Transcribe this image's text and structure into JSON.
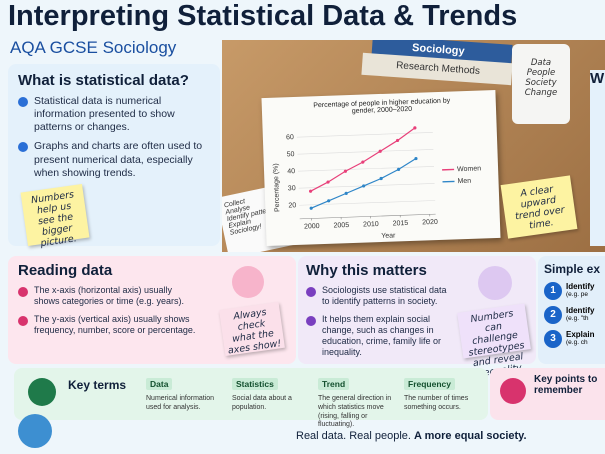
{
  "header": {
    "title": "Interpreting Statistical Data & Trends",
    "subtitle": "AQA GCSE Sociology"
  },
  "what_is": {
    "heading": "What is statistical data?",
    "bullets": [
      "Statistical data is numerical information presented to show patterns or changes.",
      "Graphs and charts are often used to present numerical data, especially when showing trends."
    ],
    "note": "Numbers help us see the bigger picture."
  },
  "photo": {
    "books": [
      "Sociology",
      "Research Methods"
    ],
    "mug": "Data People Society Change",
    "notebook": [
      "Collect",
      "Analyse",
      "Identify patterns",
      "Explain",
      "Sociology!"
    ],
    "note": "A clear upward trend over time.",
    "chart": {
      "type": "line",
      "title": "Percentage of people in higher education by gender, 2000–2020",
      "y_label": "Percentage (%)",
      "x_label": "Year",
      "xlim": [
        1998,
        2021
      ],
      "ylim": [
        12,
        66
      ],
      "xticks": [
        2000,
        2005,
        2010,
        2015,
        2020
      ],
      "yticks": [
        20,
        30,
        40,
        50,
        60
      ],
      "x": [
        2000,
        2003,
        2006,
        2009,
        2012,
        2015,
        2018
      ],
      "series": [
        {
          "name": "Women",
          "color": "#e8407a",
          "values": [
            28,
            33,
            39,
            44,
            50,
            56,
            63
          ]
        },
        {
          "name": "Men",
          "color": "#2f86c8",
          "values": [
            18,
            22,
            26,
            30,
            34,
            39,
            45
          ]
        }
      ]
    }
  },
  "right_panel": {
    "heading": "W"
  },
  "reading_data": {
    "heading": "Reading data",
    "bullets": [
      "The x-axis (horizontal axis) usually shows categories or time (e.g. years).",
      "The y-axis (vertical axis) usually shows frequency, number, score or percentage."
    ],
    "note": "Always check what the axes show!"
  },
  "why_matters": {
    "heading": "Why this matters",
    "bullets": [
      "Sociologists use statistical data to identify patterns in society.",
      "It helps them explain social change, such as changes in education, crime, family life or inequality."
    ],
    "note": "Numbers can challenge stereotypes and reveal inequality."
  },
  "examples": {
    "heading": "Simple ex",
    "items": [
      {
        "number": "1",
        "text": "Identify",
        "detail": "(e.g. pe"
      },
      {
        "number": "2",
        "text": "Identify",
        "detail": "(e.g. \"th"
      },
      {
        "number": "3",
        "text": "Explain",
        "detail": "(e.g. ch"
      }
    ]
  },
  "key_terms": {
    "heading": "Key terms",
    "terms": [
      {
        "term": "Data",
        "definition": "Numerical information used for analysis."
      },
      {
        "term": "Statistics",
        "definition": "Social data about a population."
      },
      {
        "term": "Trend",
        "definition": "The general direction in which statistics move (rising, falling or fluctuating)."
      },
      {
        "term": "Frequency",
        "definition": "The number of times something occurs."
      }
    ]
  },
  "key_points": {
    "heading": "Key points to remember"
  },
  "footer": {
    "text": "Real data. Real people.",
    "emphasis": "A more equal society."
  }
}
